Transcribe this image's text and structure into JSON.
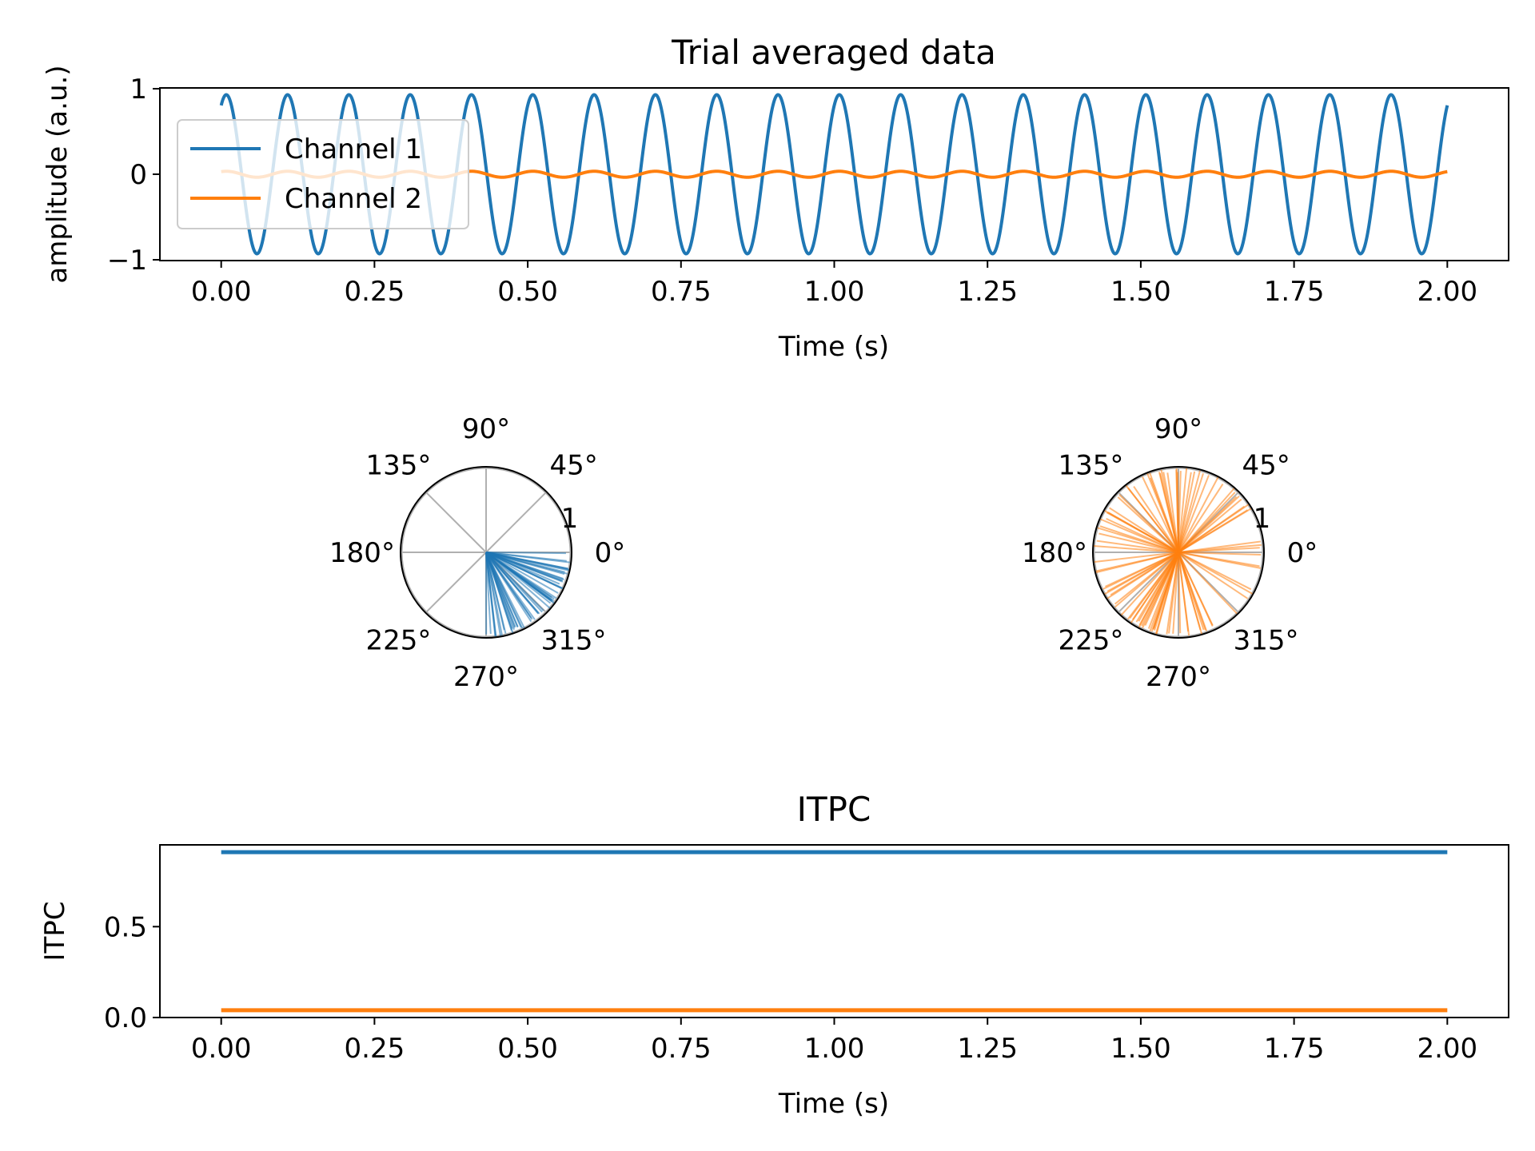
{
  "chart_data": [
    {
      "type": "line",
      "title": "Trial averaged data",
      "xlabel": "Time (s)",
      "ylabel": "amplitude (a.u.)",
      "xlim": [
        -0.1,
        2.1
      ],
      "ylim": [
        -1,
        1
      ],
      "xticks": [
        "0.00",
        "0.25",
        "0.50",
        "0.75",
        "1.00",
        "1.25",
        "1.50",
        "1.75",
        "2.00"
      ],
      "yticks": [
        "1",
        "0",
        "−1"
      ],
      "legend_position": "upper-left",
      "series": [
        {
          "name": "Channel 1",
          "color": "#1f77b4",
          "frequency_hz": 10,
          "amplitude": 0.93,
          "phase_deg": -30,
          "x_start": 0,
          "x_end": 2
        },
        {
          "name": "Channel 2",
          "color": "#ff7f0e",
          "frequency_hz": 10,
          "amplitude": 0.035,
          "phase_deg": -30,
          "x_start": 0,
          "x_end": 2
        }
      ],
      "legend": {
        "entries": [
          "Channel 1",
          "Channel 2"
        ]
      }
    },
    {
      "type": "polar",
      "angle_ticks": [
        "0°",
        "45°",
        "90°",
        "135°",
        "180°",
        "225°",
        "270°",
        "315°"
      ],
      "radial_tick": "1",
      "rmax": 1,
      "series": [
        {
          "color": "#1f77b4",
          "phase_range_deg": [
            270,
            360
          ],
          "line_count": 60
        }
      ]
    },
    {
      "type": "polar",
      "angle_ticks": [
        "0°",
        "45°",
        "90°",
        "135°",
        "180°",
        "225°",
        "270°",
        "315°"
      ],
      "radial_tick": "1",
      "rmax": 1,
      "series": [
        {
          "color": "#ff7f0e",
          "phase_range_deg": [
            0,
            360
          ],
          "line_count": 100
        }
      ]
    },
    {
      "type": "line",
      "title": "ITPC",
      "xlabel": "Time (s)",
      "ylabel": "ITPC",
      "xlim": [
        -0.1,
        2.1
      ],
      "ylim": [
        0,
        0.95
      ],
      "xticks": [
        "0.00",
        "0.25",
        "0.50",
        "0.75",
        "1.00",
        "1.25",
        "1.50",
        "1.75",
        "2.00"
      ],
      "yticks": [
        "0.0",
        "0.5"
      ],
      "series": [
        {
          "color": "#1f77b4",
          "x": [
            0,
            2
          ],
          "y": [
            0.91,
            0.91
          ]
        },
        {
          "color": "#ff7f0e",
          "x": [
            0,
            2
          ],
          "y": [
            0.04,
            0.04
          ]
        }
      ]
    }
  ]
}
